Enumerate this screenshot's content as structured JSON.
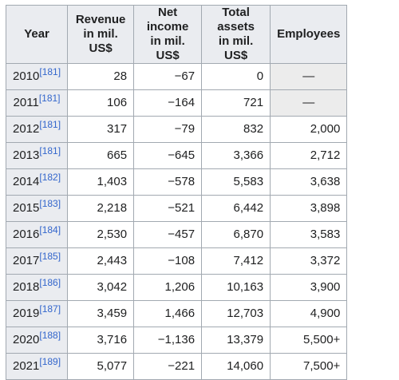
{
  "headers": {
    "year": "Year",
    "revenue_line1": "Revenue",
    "revenue_line2": "in mil. US$",
    "net_income_line1": "Net income",
    "net_income_line2": "in mil. US$",
    "total_assets_line1": "Total assets",
    "total_assets_line2": "in mil. US$",
    "employees": "Employees"
  },
  "rows": [
    {
      "year": "2010",
      "ref": "[181]",
      "revenue": "28",
      "net_income": "−67",
      "total_assets": "0",
      "employees": "—"
    },
    {
      "year": "2011",
      "ref": "[181]",
      "revenue": "106",
      "net_income": "−164",
      "total_assets": "721",
      "employees": "—"
    },
    {
      "year": "2012",
      "ref": "[181]",
      "revenue": "317",
      "net_income": "−79",
      "total_assets": "832",
      "employees": "2,000"
    },
    {
      "year": "2013",
      "ref": "[181]",
      "revenue": "665",
      "net_income": "−645",
      "total_assets": "3,366",
      "employees": "2,712"
    },
    {
      "year": "2014",
      "ref": "[182]",
      "revenue": "1,403",
      "net_income": "−578",
      "total_assets": "5,583",
      "employees": "3,638"
    },
    {
      "year": "2015",
      "ref": "[183]",
      "revenue": "2,218",
      "net_income": "−521",
      "total_assets": "6,442",
      "employees": "3,898"
    },
    {
      "year": "2016",
      "ref": "[184]",
      "revenue": "2,530",
      "net_income": "−457",
      "total_assets": "6,870",
      "employees": "3,583"
    },
    {
      "year": "2017",
      "ref": "[185]",
      "revenue": "2,443",
      "net_income": "−108",
      "total_assets": "7,412",
      "employees": "3,372"
    },
    {
      "year": "2018",
      "ref": "[186]",
      "revenue": "3,042",
      "net_income": "1,206",
      "total_assets": "10,163",
      "employees": "3,900"
    },
    {
      "year": "2019",
      "ref": "[187]",
      "revenue": "3,459",
      "net_income": "1,466",
      "total_assets": "12,703",
      "employees": "4,900"
    },
    {
      "year": "2020",
      "ref": "[188]",
      "revenue": "3,716",
      "net_income": "−1,136",
      "total_assets": "13,379",
      "employees": "5,500+"
    },
    {
      "year": "2021",
      "ref": "[189]",
      "revenue": "5,077",
      "net_income": "−221",
      "total_assets": "14,060",
      "employees": "7,500+"
    }
  ]
}
